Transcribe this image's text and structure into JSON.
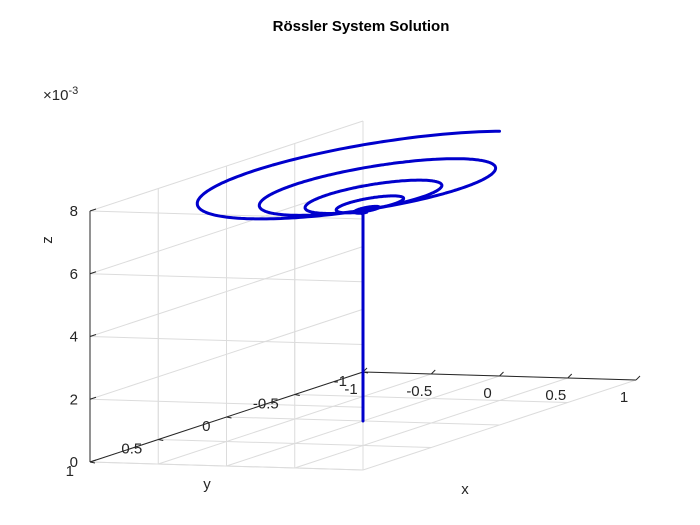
{
  "chart_data": {
    "type": "line3d",
    "title": "Rössler System Solution",
    "xlabel": "x",
    "ylabel": "y",
    "zlabel": "z",
    "z_exponent_label": "×10",
    "z_exponent_power": "-3",
    "xlim": [
      -1,
      1
    ],
    "ylim": [
      -1,
      1
    ],
    "zlim": [
      0,
      0.008
    ],
    "x_ticks": [
      -1,
      -0.5,
      0,
      0.5,
      1
    ],
    "x_tick_labels": [
      "-1",
      "-0.5",
      "0",
      "0.5",
      "1"
    ],
    "y_ticks": [
      -1,
      -0.5,
      0,
      0.5,
      1
    ],
    "y_tick_labels": [
      "-1",
      "-0.5",
      "0",
      "0.5",
      "1"
    ],
    "z_ticks": [
      0,
      0.002,
      0.004,
      0.006,
      0.008
    ],
    "z_tick_labels": [
      "0",
      "2",
      "4",
      "6",
      "8"
    ],
    "grid": true,
    "line_color": "#0000cc",
    "series": [
      {
        "start": [
          0,
          0,
          0
        ],
        "spiral_center": [
          0,
          0,
          0.0066
        ],
        "spiral_outer_radius": 1.0,
        "spiral_turns": 6
      }
    ]
  }
}
